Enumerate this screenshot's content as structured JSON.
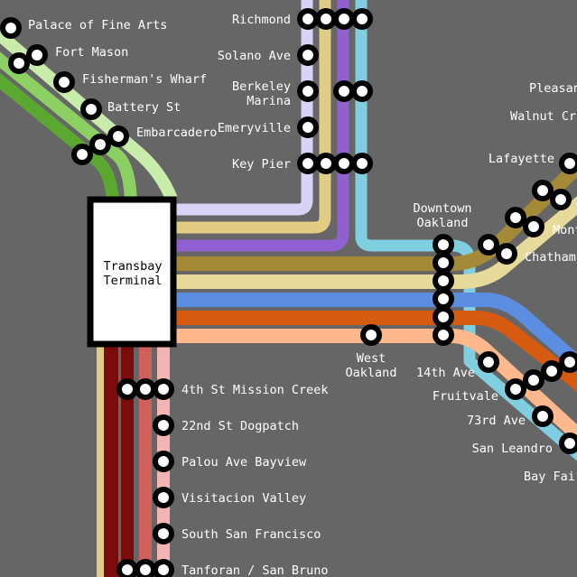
{
  "map": {
    "background": "#666666",
    "terminal": {
      "line1": "Transbay",
      "line2": "Terminal"
    },
    "line_colors": {
      "green_dark": "#5aa830",
      "green_mid": "#8cd064",
      "green_light": "#c8ecaa",
      "lavender": "#d8d4f8",
      "purple": "#9060d0",
      "tan": "#e2cc84",
      "cyan": "#7fcfe0",
      "olive": "#a48a36",
      "cream": "#e8da9a",
      "blue": "#5b8ee0",
      "orange": "#d65a10",
      "peach": "#ffb88c",
      "maroon": "#7a0c0c",
      "red": "#d0605c",
      "pink": "#f4b4b4"
    },
    "stations": {
      "palace_of_fine_arts": "Palace of Fine Arts",
      "fort_mason": "Fort Mason",
      "fishermans_wharf": "Fisherman's Wharf",
      "battery_st": "Battery St",
      "embarcadero": "Embarcadero",
      "richmond": "Richmond",
      "solano_ave": "Solano Ave",
      "berkeley_marina_1": "Berkeley",
      "berkeley_marina_2": "Marina",
      "emeryville": "Emeryville",
      "key_pier": "Key Pier",
      "pleasanton": "Pleasan",
      "walnut_creek": "Walnut Cr",
      "lafayette": "Lafayette",
      "montclair": "Mont",
      "chatham": "Chatham",
      "downtown_oakland_1": "Downtown",
      "downtown_oakland_2": "Oakland",
      "west_oakland_1": "West",
      "west_oakland_2": "Oakland",
      "fourteenth_ave": "14th Ave",
      "fruitvale": "Fruitvale",
      "seventy_third_ave": "73rd Ave",
      "san_leandro": "San Leandro",
      "bay_fair": "Bay Fair",
      "fourth_st_mission_creek": "4th St Mission Creek",
      "twenty_second_st_dogpatch": "22nd St Dogpatch",
      "palou_ave_bayview": "Palou Ave Bayview",
      "visitacion_valley": "Visitacion Valley",
      "south_san_francisco": "South San Francisco",
      "tanforan_san_bruno": "Tanforan / San Bruno"
    }
  }
}
